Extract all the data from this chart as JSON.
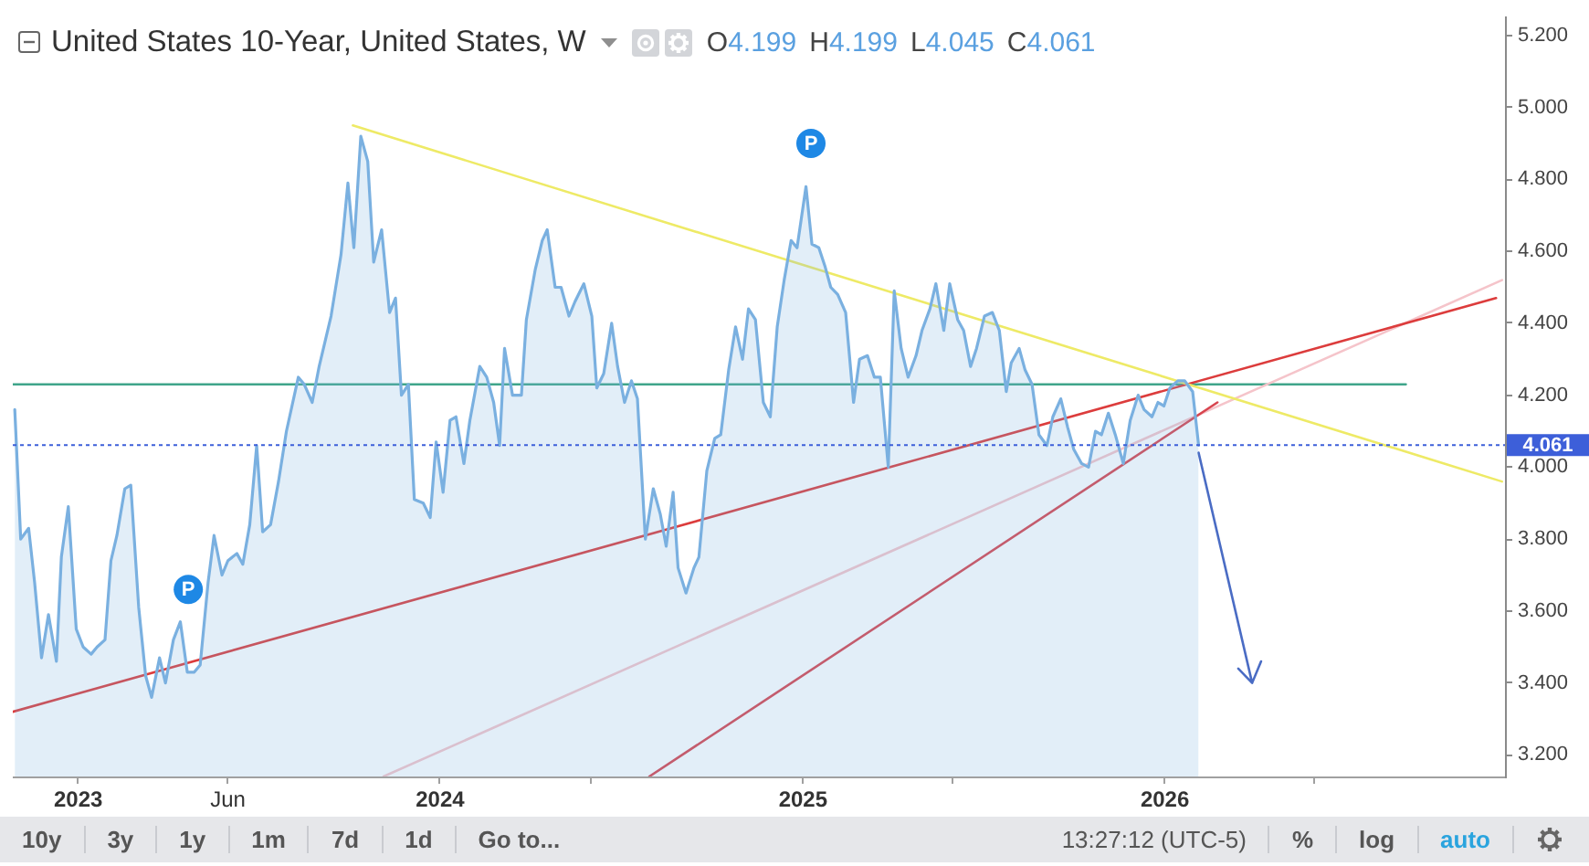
{
  "chart_data": {
    "type": "area",
    "title": "United States 10-Year, United States, W",
    "annotations": [
      "O4.199",
      "H4.199",
      "L4.045",
      "C4.061",
      {
        "text": "P",
        "x": "2023-04-22",
        "y": 3.66
      },
      {
        "text": "P",
        "x": "2025-01-09",
        "y": 4.9
      },
      "10y",
      "3y",
      "1y",
      "1m",
      "7d",
      "1d",
      "Go to...",
      "13:27:12 (UTC-5)",
      "%",
      "log",
      "auto"
    ],
    "xlim": [
      "2022-10-27",
      "2026-12-10"
    ],
    "xticks": [
      {
        "value": "2023-01-01",
        "label": "2023"
      },
      {
        "value": "2023-06-01",
        "label": "Jun"
      },
      {
        "value": "2024-01-01",
        "label": "2024"
      },
      {
        "value": "2024-06-01",
        "label": null
      },
      {
        "value": "2025-01-01",
        "label": "2025"
      },
      {
        "value": "2025-06-01",
        "label": null
      },
      {
        "value": "2026-01-01",
        "label": "2026"
      },
      {
        "value": "2026-06-01",
        "label": null
      }
    ],
    "ylim": [
      3.14,
      5.25
    ],
    "yticks": [
      {
        "value": 3.2,
        "label": "3.200"
      },
      {
        "value": 3.4,
        "label": "3.400"
      },
      {
        "value": 3.6,
        "label": "3.600"
      },
      {
        "value": 3.8,
        "label": "3.800"
      },
      {
        "value": 4.0,
        "label": "4.000"
      },
      {
        "value": 4.2,
        "label": "4.200"
      },
      {
        "value": 4.4,
        "label": "4.400"
      },
      {
        "value": 4.6,
        "label": "4.600"
      },
      {
        "value": 4.8,
        "label": "4.800"
      },
      {
        "value": 5.0,
        "label": "5.000"
      },
      {
        "value": 5.2,
        "label": "5.200"
      }
    ],
    "ref_lines": [
      {
        "axis": "y",
        "value": 4.061,
        "label": "4.061",
        "color": "#3d5fd9",
        "line_style": "dotted"
      }
    ],
    "series": [
      {
        "color": "#7ab0e0",
        "x": [
          "2022-10-29",
          "2022-11-04",
          "2022-11-12",
          "2022-11-18",
          "2022-11-25",
          "2022-12-02",
          "2022-12-10",
          "2022-12-15",
          "2022-12-22",
          "2022-12-30",
          "2023-01-06",
          "2023-01-14",
          "2023-01-20",
          "2023-01-28",
          "2023-02-03",
          "2023-02-09",
          "2023-02-17",
          "2023-02-23",
          "2023-03-03",
          "2023-03-10",
          "2023-03-16",
          "2023-03-24",
          "2023-03-30",
          "2023-04-07",
          "2023-04-14",
          "2023-04-21",
          "2023-04-28",
          "2023-05-04",
          "2023-05-12",
          "2023-05-18",
          "2023-05-26",
          "2023-06-01",
          "2023-06-10",
          "2023-06-16",
          "2023-06-23",
          "2023-06-30",
          "2023-07-06",
          "2023-07-14",
          "2023-07-22",
          "2023-07-30",
          "2023-08-11",
          "2023-08-17",
          "2023-08-25",
          "2023-09-01",
          "2023-09-13",
          "2023-09-23",
          "2023-09-30",
          "2023-10-06",
          "2023-10-13",
          "2023-10-20",
          "2023-10-26",
          "2023-11-03",
          "2023-11-11",
          "2023-11-17",
          "2023-11-23",
          "2023-11-30",
          "2023-12-06",
          "2023-12-15",
          "2023-12-22",
          "2023-12-28",
          "2024-01-04",
          "2024-01-11",
          "2024-01-17",
          "2024-01-25",
          "2024-01-31",
          "2024-02-10",
          "2024-02-17",
          "2024-02-24",
          "2024-03-01",
          "2024-03-06",
          "2024-03-14",
          "2024-03-23",
          "2024-03-28",
          "2024-04-06",
          "2024-04-13",
          "2024-04-18",
          "2024-04-26",
          "2024-05-02",
          "2024-05-10",
          "2024-05-16",
          "2024-05-25",
          "2024-06-02",
          "2024-06-07",
          "2024-06-14",
          "2024-06-22",
          "2024-06-28",
          "2024-07-05",
          "2024-07-12",
          "2024-07-18",
          "2024-07-26",
          "2024-08-03",
          "2024-08-10",
          "2024-08-16",
          "2024-08-23",
          "2024-08-28",
          "2024-09-05",
          "2024-09-13",
          "2024-09-18",
          "2024-09-26",
          "2024-10-04",
          "2024-10-10",
          "2024-10-18",
          "2024-10-25",
          "2024-11-01",
          "2024-11-07",
          "2024-11-14",
          "2024-11-22",
          "2024-11-29",
          "2024-12-06",
          "2024-12-13",
          "2024-12-20",
          "2024-12-26",
          "2025-01-04",
          "2025-01-10",
          "2025-01-17",
          "2025-01-23",
          "2025-01-29",
          "2025-02-05",
          "2025-02-13",
          "2025-02-21",
          "2025-02-27",
          "2025-03-07",
          "2025-03-14",
          "2025-03-20",
          "2025-03-28",
          "2025-04-03",
          "2025-04-10",
          "2025-04-17",
          "2025-04-25",
          "2025-05-01",
          "2025-05-09",
          "2025-05-15",
          "2025-05-23",
          "2025-05-29",
          "2025-06-06",
          "2025-06-12",
          "2025-06-19",
          "2025-06-25",
          "2025-07-03",
          "2025-07-11",
          "2025-07-18",
          "2025-07-25",
          "2025-07-30",
          "2025-08-07",
          "2025-08-13",
          "2025-08-20",
          "2025-08-27",
          "2025-09-04",
          "2025-09-10",
          "2025-09-18",
          "2025-09-25",
          "2025-10-01",
          "2025-10-09",
          "2025-10-16",
          "2025-10-23",
          "2025-10-29",
          "2025-11-05",
          "2025-11-12",
          "2025-11-20",
          "2025-11-27",
          "2025-12-05",
          "2025-12-11",
          "2025-12-19",
          "2025-12-25",
          "2025-12-31",
          "2026-01-06",
          "2026-01-14",
          "2026-01-21",
          "2026-01-29",
          "2026-02-04"
        ],
        "values": [
          4.16,
          3.8,
          3.83,
          3.68,
          3.47,
          3.59,
          3.46,
          3.75,
          3.89,
          3.55,
          3.5,
          3.48,
          3.5,
          3.52,
          3.74,
          3.81,
          3.94,
          3.95,
          3.61,
          3.42,
          3.36,
          3.47,
          3.4,
          3.52,
          3.57,
          3.43,
          3.43,
          3.45,
          3.68,
          3.81,
          3.7,
          3.74,
          3.76,
          3.73,
          3.84,
          4.06,
          3.82,
          3.84,
          3.96,
          4.1,
          4.25,
          4.23,
          4.18,
          4.28,
          4.42,
          4.59,
          4.79,
          4.61,
          4.92,
          4.85,
          4.57,
          4.66,
          4.43,
          4.47,
          4.2,
          4.23,
          3.91,
          3.9,
          3.86,
          4.07,
          3.93,
          4.13,
          4.14,
          4.01,
          4.13,
          4.28,
          4.25,
          4.18,
          4.06,
          4.33,
          4.2,
          4.2,
          4.41,
          4.55,
          4.63,
          4.66,
          4.5,
          4.5,
          4.42,
          4.46,
          4.51,
          4.42,
          4.22,
          4.26,
          4.4,
          4.28,
          4.18,
          4.24,
          4.19,
          3.8,
          3.94,
          3.87,
          3.78,
          3.93,
          3.72,
          3.65,
          3.72,
          3.75,
          3.99,
          4.08,
          4.09,
          4.27,
          4.39,
          4.3,
          4.44,
          4.41,
          4.18,
          4.14,
          4.39,
          4.52,
          4.63,
          4.61,
          4.78,
          4.62,
          4.61,
          4.56,
          4.5,
          4.48,
          4.43,
          4.18,
          4.3,
          4.31,
          4.25,
          4.25,
          4.0,
          4.49,
          4.33,
          4.25,
          4.31,
          4.38,
          4.44,
          4.51,
          4.38,
          4.51,
          4.41,
          4.38,
          4.28,
          4.33,
          4.42,
          4.43,
          4.38,
          4.21,
          4.29,
          4.33,
          4.27,
          4.23,
          4.09,
          4.06,
          4.14,
          4.19,
          4.11,
          4.05,
          4.01,
          4.0,
          4.1,
          4.09,
          4.15,
          4.09,
          4.01,
          4.13,
          4.2,
          4.16,
          4.14,
          4.18,
          4.17,
          4.22,
          4.24,
          4.24,
          4.21,
          4.061
        ]
      },
      {
        "type": "line",
        "color": "#eeea66",
        "x": [
          "2023-10-05",
          "2026-12-07"
        ],
        "values": [
          4.95,
          3.96
        ]
      },
      {
        "type": "line",
        "color": "#dc3c3c",
        "x": [
          "2022-10-27",
          "2026-12-01"
        ],
        "values": [
          3.32,
          4.47
        ]
      },
      {
        "type": "line",
        "color": "#d8444e",
        "x": [
          "2024-07-30",
          "2026-02-23"
        ],
        "values": [
          3.14,
          4.18
        ]
      },
      {
        "type": "line",
        "color": "#f5c4ca",
        "x": [
          "2023-11-05",
          "2026-12-07"
        ],
        "values": [
          3.14,
          4.52
        ]
      },
      {
        "type": "line",
        "color": "#3fa58a",
        "x": [
          "2022-10-27",
          "2026-09-01"
        ],
        "values": [
          4.23,
          4.23
        ]
      },
      {
        "type": "line",
        "color": "#4a6cc4",
        "x": [
          "2026-02-04",
          "2026-03-30",
          "2026-03-16",
          "2026-03-30",
          "2026-04-08"
        ],
        "values": [
          4.04,
          3.4,
          3.44,
          3.4,
          3.46
        ]
      }
    ]
  }
}
